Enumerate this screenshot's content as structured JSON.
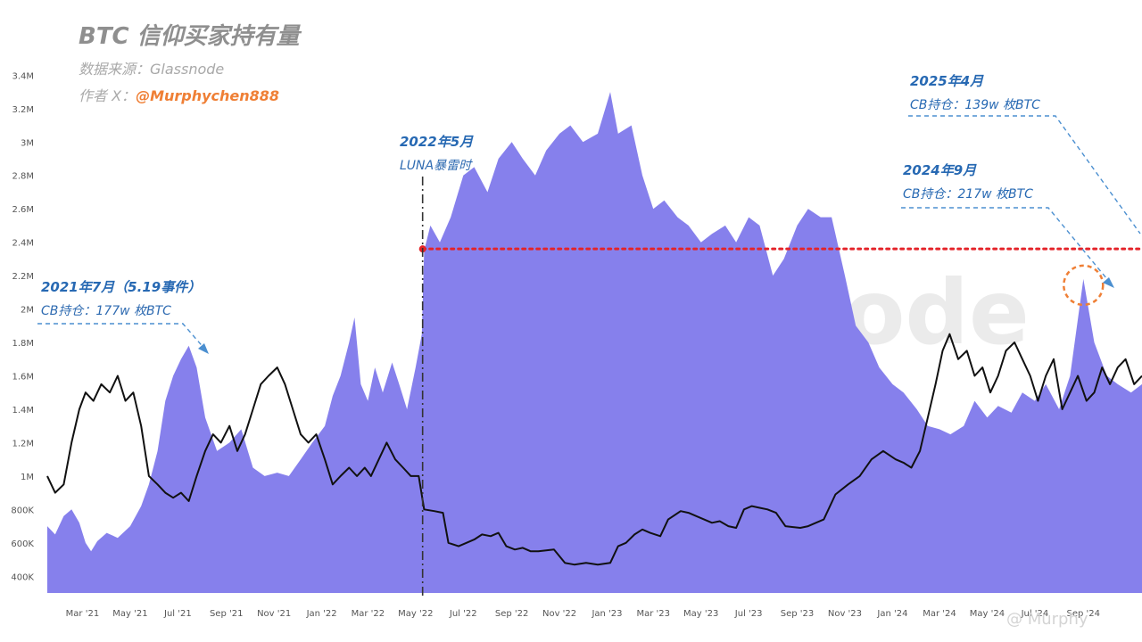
{
  "header": {
    "title": "BTC 信仰买家持有量",
    "source": "数据来源：Glassnode",
    "author_label": "作者 X：",
    "author_handle": "@Murphychen888"
  },
  "annotations": [
    {
      "heading": "2021年7月（5.19事件）",
      "text": "CB持仓：177w 枚BTC"
    },
    {
      "heading": "2022年5月",
      "text": "LUNA暴雷时"
    },
    {
      "heading": "2024年9月",
      "text": "CB持仓：217w 枚BTC"
    },
    {
      "heading": "2025年4月",
      "text": "CB持仓：139w 枚BTC"
    }
  ],
  "watermark": "glassnode",
  "footer_watermark": "@ Murphy",
  "colors": {
    "area": "#8680ec",
    "line": "#111111",
    "reference": "#e4242a",
    "annotation": "#2769b3",
    "highlight": "#ef7f35"
  },
  "chart_data": {
    "type": "area",
    "title": "BTC 信仰买家持有量",
    "y_ticks": [
      "400K",
      "600K",
      "800K",
      "1M",
      "1.2M",
      "1.4M",
      "1.6M",
      "1.8M",
      "2M",
      "2.2M",
      "2.4M",
      "2.6M",
      "2.8M",
      "3M",
      "3.2M",
      "3.4M"
    ],
    "ylim": [
      300000,
      3450000
    ],
    "x_ticks": [
      "Mar '21",
      "May '21",
      "Jul '21",
      "Sep '21",
      "Nov '21",
      "Jan '22",
      "Mar '22",
      "May '22",
      "Jul '22",
      "Sep '22",
      "Nov '22",
      "Jan '23",
      "Mar '23",
      "May '23",
      "Jul '23",
      "Sep '23",
      "Nov '23",
      "Jan '24",
      "Mar '24",
      "May '24",
      "Jul '24",
      "Sep '24"
    ],
    "x_start": "2021-01-15",
    "x_end": "2024-11-15",
    "reference_line": {
      "value": 2360000
    },
    "vertical_marker": {
      "x": "2022-05-10"
    },
    "highlight_point": {
      "x": "2024-09-01",
      "value": 2180000
    },
    "series": [
      {
        "type": "area",
        "points": [
          [
            "2021-01-15",
            700000
          ],
          [
            "2021-01-25",
            650000
          ],
          [
            "2021-02-05",
            760000
          ],
          [
            "2021-02-15",
            800000
          ],
          [
            "2021-02-25",
            720000
          ],
          [
            "2021-03-05",
            600000
          ],
          [
            "2021-03-12",
            550000
          ],
          [
            "2021-03-20",
            610000
          ],
          [
            "2021-04-01",
            660000
          ],
          [
            "2021-04-15",
            630000
          ],
          [
            "2021-05-01",
            700000
          ],
          [
            "2021-05-15",
            820000
          ],
          [
            "2021-05-25",
            950000
          ],
          [
            "2021-06-05",
            1150000
          ],
          [
            "2021-06-15",
            1450000
          ],
          [
            "2021-06-25",
            1600000
          ],
          [
            "2021-07-05",
            1700000
          ],
          [
            "2021-07-15",
            1780000
          ],
          [
            "2021-07-25",
            1650000
          ],
          [
            "2021-08-05",
            1350000
          ],
          [
            "2021-08-20",
            1150000
          ],
          [
            "2021-09-05",
            1200000
          ],
          [
            "2021-09-20",
            1280000
          ],
          [
            "2021-10-05",
            1050000
          ],
          [
            "2021-10-20",
            1000000
          ],
          [
            "2021-11-05",
            1020000
          ],
          [
            "2021-11-20",
            1000000
          ],
          [
            "2021-12-05",
            1100000
          ],
          [
            "2021-12-20",
            1200000
          ],
          [
            "2022-01-05",
            1300000
          ],
          [
            "2022-01-15",
            1480000
          ],
          [
            "2022-01-25",
            1600000
          ],
          [
            "2022-02-05",
            1800000
          ],
          [
            "2022-02-12",
            1950000
          ],
          [
            "2022-02-20",
            1550000
          ],
          [
            "2022-03-01",
            1450000
          ],
          [
            "2022-03-10",
            1650000
          ],
          [
            "2022-03-20",
            1500000
          ],
          [
            "2022-04-01",
            1680000
          ],
          [
            "2022-04-10",
            1550000
          ],
          [
            "2022-04-20",
            1400000
          ],
          [
            "2022-05-01",
            1650000
          ],
          [
            "2022-05-09",
            1850000
          ],
          [
            "2022-05-12",
            2350000
          ],
          [
            "2022-05-20",
            2500000
          ],
          [
            "2022-06-01",
            2400000
          ],
          [
            "2022-06-15",
            2550000
          ],
          [
            "2022-07-01",
            2800000
          ],
          [
            "2022-07-15",
            2850000
          ],
          [
            "2022-08-01",
            2700000
          ],
          [
            "2022-08-15",
            2900000
          ],
          [
            "2022-09-01",
            3000000
          ],
          [
            "2022-09-15",
            2900000
          ],
          [
            "2022-10-01",
            2800000
          ],
          [
            "2022-10-15",
            2950000
          ],
          [
            "2022-11-01",
            3050000
          ],
          [
            "2022-11-15",
            3100000
          ],
          [
            "2022-12-01",
            3000000
          ],
          [
            "2022-12-20",
            3050000
          ],
          [
            "2023-01-05",
            3300000
          ],
          [
            "2023-01-15",
            3050000
          ],
          [
            "2023-02-01",
            3100000
          ],
          [
            "2023-02-15",
            2800000
          ],
          [
            "2023-03-01",
            2600000
          ],
          [
            "2023-03-15",
            2650000
          ],
          [
            "2023-04-01",
            2550000
          ],
          [
            "2023-04-15",
            2500000
          ],
          [
            "2023-05-01",
            2400000
          ],
          [
            "2023-05-15",
            2450000
          ],
          [
            "2023-06-01",
            2500000
          ],
          [
            "2023-06-15",
            2400000
          ],
          [
            "2023-07-01",
            2550000
          ],
          [
            "2023-07-15",
            2500000
          ],
          [
            "2023-08-01",
            2200000
          ],
          [
            "2023-08-15",
            2300000
          ],
          [
            "2023-09-01",
            2500000
          ],
          [
            "2023-09-15",
            2600000
          ],
          [
            "2023-10-01",
            2550000
          ],
          [
            "2023-10-15",
            2550000
          ],
          [
            "2023-11-01",
            2200000
          ],
          [
            "2023-11-15",
            1900000
          ],
          [
            "2023-12-01",
            1800000
          ],
          [
            "2023-12-15",
            1650000
          ],
          [
            "2024-01-01",
            1550000
          ],
          [
            "2024-01-15",
            1500000
          ],
          [
            "2024-02-01",
            1400000
          ],
          [
            "2024-02-15",
            1300000
          ],
          [
            "2024-03-01",
            1280000
          ],
          [
            "2024-03-15",
            1250000
          ],
          [
            "2024-04-01",
            1300000
          ],
          [
            "2024-04-15",
            1450000
          ],
          [
            "2024-05-01",
            1350000
          ],
          [
            "2024-05-15",
            1420000
          ],
          [
            "2024-06-01",
            1380000
          ],
          [
            "2024-06-15",
            1500000
          ],
          [
            "2024-07-01",
            1450000
          ],
          [
            "2024-07-15",
            1550000
          ],
          [
            "2024-08-01",
            1400000
          ],
          [
            "2024-08-15",
            1600000
          ],
          [
            "2024-09-01",
            2180000
          ],
          [
            "2024-09-15",
            1800000
          ],
          [
            "2024-10-01",
            1600000
          ],
          [
            "2024-10-15",
            1550000
          ],
          [
            "2024-11-01",
            1500000
          ],
          [
            "2024-11-15",
            1550000
          ]
        ]
      },
      {
        "type": "line",
        "points": [
          [
            "2021-01-15",
            1000000
          ],
          [
            "2021-01-25",
            900000
          ],
          [
            "2021-02-05",
            950000
          ],
          [
            "2021-02-15",
            1200000
          ],
          [
            "2021-02-25",
            1400000
          ],
          [
            "2021-03-05",
            1500000
          ],
          [
            "2021-03-15",
            1450000
          ],
          [
            "2021-03-25",
            1550000
          ],
          [
            "2021-04-05",
            1500000
          ],
          [
            "2021-04-15",
            1600000
          ],
          [
            "2021-04-25",
            1450000
          ],
          [
            "2021-05-05",
            1500000
          ],
          [
            "2021-05-15",
            1300000
          ],
          [
            "2021-05-25",
            1000000
          ],
          [
            "2021-06-05",
            950000
          ],
          [
            "2021-06-15",
            900000
          ],
          [
            "2021-06-25",
            870000
          ],
          [
            "2021-07-05",
            900000
          ],
          [
            "2021-07-15",
            850000
          ],
          [
            "2021-07-25",
            1000000
          ],
          [
            "2021-08-05",
            1150000
          ],
          [
            "2021-08-15",
            1250000
          ],
          [
            "2021-08-25",
            1200000
          ],
          [
            "2021-09-05",
            1300000
          ],
          [
            "2021-09-15",
            1150000
          ],
          [
            "2021-09-25",
            1250000
          ],
          [
            "2021-10-05",
            1400000
          ],
          [
            "2021-10-15",
            1550000
          ],
          [
            "2021-10-25",
            1600000
          ],
          [
            "2021-11-05",
            1650000
          ],
          [
            "2021-11-15",
            1550000
          ],
          [
            "2021-11-25",
            1400000
          ],
          [
            "2021-12-05",
            1250000
          ],
          [
            "2021-12-15",
            1200000
          ],
          [
            "2021-12-25",
            1250000
          ],
          [
            "2022-01-05",
            1100000
          ],
          [
            "2022-01-15",
            950000
          ],
          [
            "2022-01-25",
            1000000
          ],
          [
            "2022-02-05",
            1050000
          ],
          [
            "2022-02-15",
            1000000
          ],
          [
            "2022-02-25",
            1050000
          ],
          [
            "2022-03-05",
            1000000
          ],
          [
            "2022-03-15",
            1100000
          ],
          [
            "2022-03-25",
            1200000
          ],
          [
            "2022-04-05",
            1100000
          ],
          [
            "2022-04-15",
            1050000
          ],
          [
            "2022-04-25",
            1000000
          ],
          [
            "2022-05-05",
            1000000
          ],
          [
            "2022-05-12",
            800000
          ],
          [
            "2022-05-25",
            790000
          ],
          [
            "2022-06-05",
            780000
          ],
          [
            "2022-06-12",
            600000
          ],
          [
            "2022-06-25",
            580000
          ],
          [
            "2022-07-05",
            600000
          ],
          [
            "2022-07-15",
            620000
          ],
          [
            "2022-07-25",
            650000
          ],
          [
            "2022-08-05",
            640000
          ],
          [
            "2022-08-15",
            660000
          ],
          [
            "2022-08-25",
            580000
          ],
          [
            "2022-09-05",
            560000
          ],
          [
            "2022-09-15",
            570000
          ],
          [
            "2022-09-25",
            550000
          ],
          [
            "2022-10-05",
            550000
          ],
          [
            "2022-10-15",
            555000
          ],
          [
            "2022-10-25",
            560000
          ],
          [
            "2022-11-08",
            480000
          ],
          [
            "2022-11-20",
            470000
          ],
          [
            "2022-12-05",
            480000
          ],
          [
            "2022-12-20",
            470000
          ],
          [
            "2023-01-05",
            480000
          ],
          [
            "2023-01-15",
            580000
          ],
          [
            "2023-01-25",
            600000
          ],
          [
            "2023-02-05",
            650000
          ],
          [
            "2023-02-15",
            680000
          ],
          [
            "2023-02-25",
            660000
          ],
          [
            "2023-03-10",
            640000
          ],
          [
            "2023-03-20",
            740000
          ],
          [
            "2023-04-05",
            790000
          ],
          [
            "2023-04-15",
            780000
          ],
          [
            "2023-04-25",
            760000
          ],
          [
            "2023-05-05",
            740000
          ],
          [
            "2023-05-15",
            720000
          ],
          [
            "2023-05-25",
            730000
          ],
          [
            "2023-06-05",
            700000
          ],
          [
            "2023-06-15",
            690000
          ],
          [
            "2023-06-25",
            800000
          ],
          [
            "2023-07-05",
            820000
          ],
          [
            "2023-07-15",
            810000
          ],
          [
            "2023-07-25",
            800000
          ],
          [
            "2023-08-05",
            780000
          ],
          [
            "2023-08-17",
            700000
          ],
          [
            "2023-09-05",
            690000
          ],
          [
            "2023-09-15",
            700000
          ],
          [
            "2023-09-25",
            720000
          ],
          [
            "2023-10-05",
            740000
          ],
          [
            "2023-10-20",
            890000
          ],
          [
            "2023-11-05",
            950000
          ],
          [
            "2023-11-20",
            1000000
          ],
          [
            "2023-12-05",
            1100000
          ],
          [
            "2023-12-20",
            1150000
          ],
          [
            "2024-01-05",
            1100000
          ],
          [
            "2024-01-15",
            1080000
          ],
          [
            "2024-01-25",
            1050000
          ],
          [
            "2024-02-05",
            1150000
          ],
          [
            "2024-02-15",
            1350000
          ],
          [
            "2024-02-25",
            1550000
          ],
          [
            "2024-03-05",
            1750000
          ],
          [
            "2024-03-14",
            1850000
          ],
          [
            "2024-03-25",
            1700000
          ],
          [
            "2024-04-05",
            1750000
          ],
          [
            "2024-04-15",
            1600000
          ],
          [
            "2024-04-25",
            1650000
          ],
          [
            "2024-05-05",
            1500000
          ],
          [
            "2024-05-15",
            1600000
          ],
          [
            "2024-05-25",
            1750000
          ],
          [
            "2024-06-05",
            1800000
          ],
          [
            "2024-06-15",
            1700000
          ],
          [
            "2024-06-25",
            1600000
          ],
          [
            "2024-07-05",
            1450000
          ],
          [
            "2024-07-15",
            1600000
          ],
          [
            "2024-07-25",
            1700000
          ],
          [
            "2024-08-05",
            1400000
          ],
          [
            "2024-08-15",
            1500000
          ],
          [
            "2024-08-25",
            1600000
          ],
          [
            "2024-09-05",
            1450000
          ],
          [
            "2024-09-15",
            1500000
          ],
          [
            "2024-09-25",
            1650000
          ],
          [
            "2024-10-05",
            1550000
          ],
          [
            "2024-10-15",
            1650000
          ],
          [
            "2024-10-25",
            1700000
          ],
          [
            "2024-11-05",
            1550000
          ],
          [
            "2024-11-15",
            1600000
          ]
        ]
      }
    ]
  }
}
